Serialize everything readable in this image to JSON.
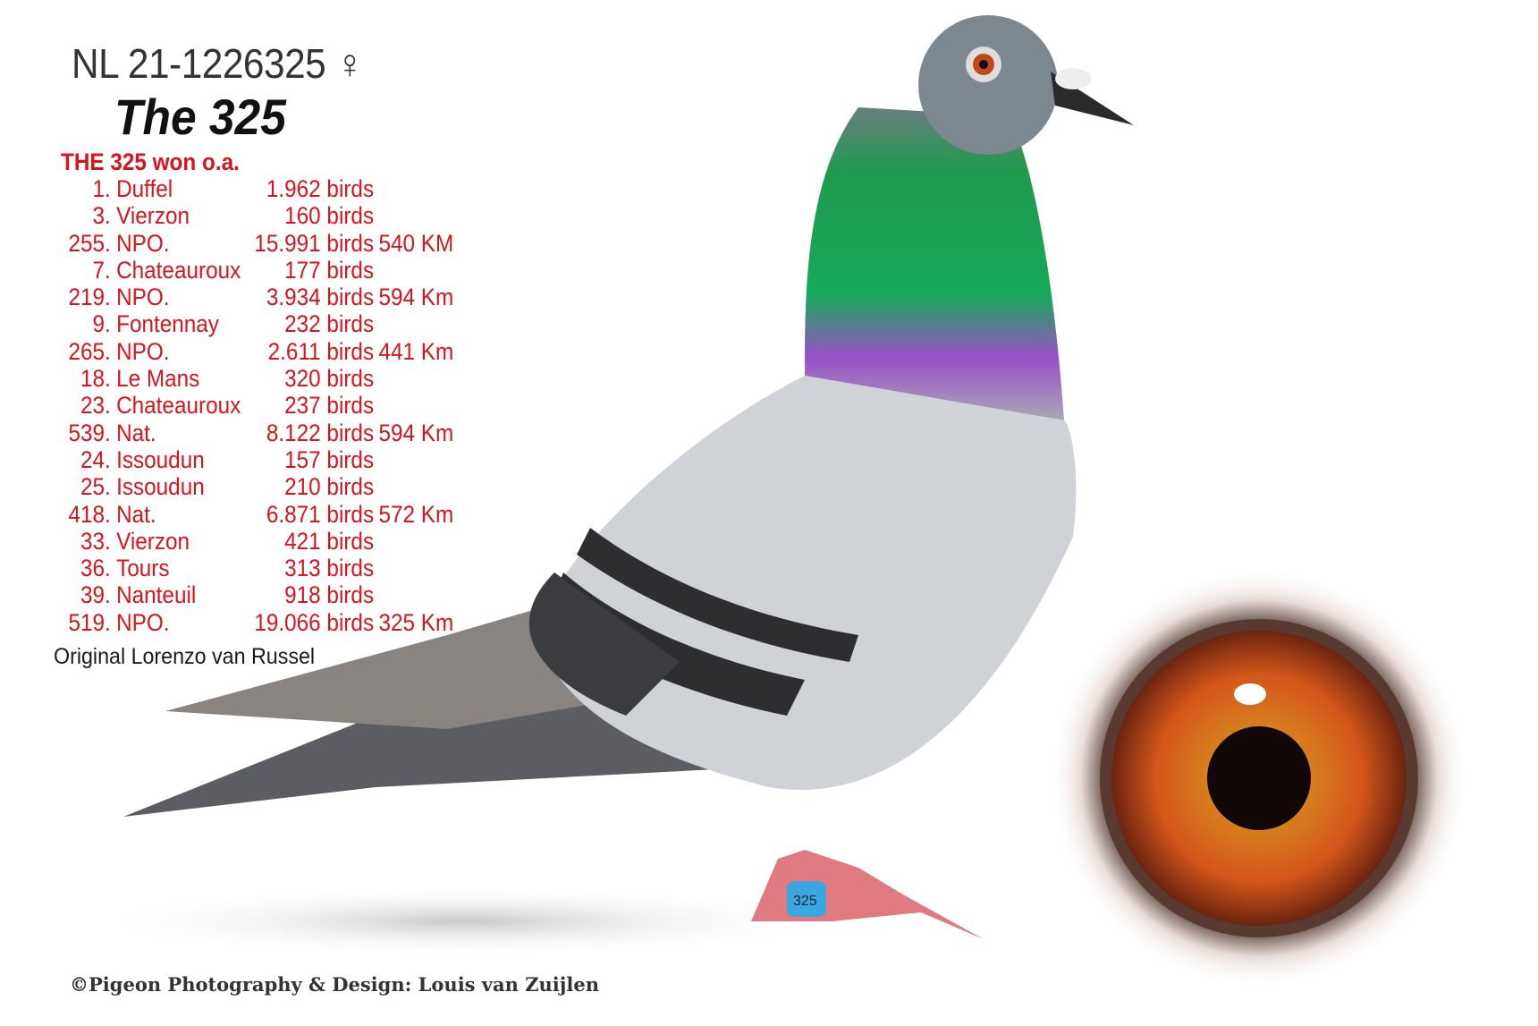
{
  "ring_number": "NL 21-1226325 ♀",
  "name": "The 325",
  "results_header": "THE 325 won o.a.",
  "results": [
    {
      "rank": "1.",
      "place": "Duffel",
      "birds": "1.962 birds",
      "km": ""
    },
    {
      "rank": "3.",
      "place": "Vierzon",
      "birds": "160 birds",
      "km": ""
    },
    {
      "rank": "255.",
      "place": "NPO.",
      "birds": "15.991 birds",
      "km": "540 KM"
    },
    {
      "rank": "7.",
      "place": "Chateauroux",
      "birds": "177 birds",
      "km": ""
    },
    {
      "rank": "219.",
      "place": "NPO.",
      "birds": "3.934 birds",
      "km": "594 Km"
    },
    {
      "rank": "9.",
      "place": "Fontennay",
      "birds": "232 birds",
      "km": ""
    },
    {
      "rank": "265.",
      "place": "NPO.",
      "birds": "2.611 birds",
      "km": "441 Km"
    },
    {
      "rank": "18.",
      "place": "Le Mans",
      "birds": "320 birds",
      "km": ""
    },
    {
      "rank": "23.",
      "place": "Chateauroux",
      "birds": "237 birds",
      "km": ""
    },
    {
      "rank": "539.",
      "place": "Nat.",
      "birds": "8.122 birds",
      "km": "594 Km"
    },
    {
      "rank": "24.",
      "place": "Issoudun",
      "birds": "157 birds",
      "km": ""
    },
    {
      "rank": "25.",
      "place": "Issoudun",
      "birds": "210 birds",
      "km": ""
    },
    {
      "rank": "418.",
      "place": "Nat.",
      "birds": "6.871 birds",
      "km": "572 Km"
    },
    {
      "rank": "33.",
      "place": "Vierzon",
      "birds": "421 birds",
      "km": ""
    },
    {
      "rank": "36.",
      "place": "Tours",
      "birds": "313 birds",
      "km": ""
    },
    {
      "rank": "39.",
      "place": "Nanteuil",
      "birds": "918 birds",
      "km": ""
    },
    {
      "rank": "519.",
      "place": "NPO.",
      "birds": "19.066 birds",
      "km": "325 Km"
    }
  ],
  "origin": "Original Lorenzo van Russel",
  "copyright": "©Pigeon Photography & Design: Louis van Zuijlen",
  "leg_band": "325",
  "colors": {
    "results_text": "#d8141c",
    "title_text": "#333333"
  }
}
